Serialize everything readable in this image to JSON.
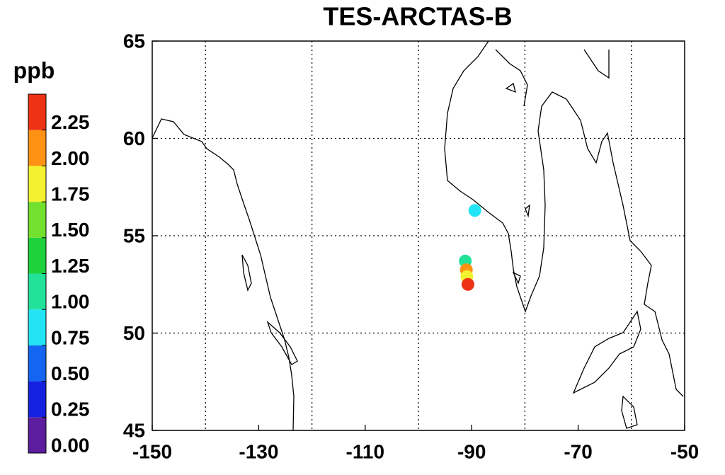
{
  "chart_data": {
    "type": "scatter",
    "title": "TES-ARCTAS-B",
    "x": [
      -89.4,
      -91.2,
      -91.0,
      -90.9,
      -90.7
    ],
    "y": [
      56.3,
      53.7,
      53.25,
      52.9,
      52.5
    ],
    "values": [
      0.8,
      1.1,
      2.1,
      1.9,
      2.3
    ],
    "xlim": [
      -150,
      -50
    ],
    "ylim": [
      45,
      65
    ],
    "xticks": [
      -150,
      -130,
      -110,
      -90,
      -70,
      -50
    ],
    "yticks": [
      45,
      50,
      55,
      60,
      65
    ],
    "xgrid": [
      -140,
      -120,
      -100,
      -80,
      -60
    ],
    "ygrid": [
      50,
      55,
      60
    ],
    "grid": true,
    "colorbar": {
      "label": "ppb",
      "lim": [
        0,
        2.5
      ],
      "ticks": [
        0.0,
        0.25,
        0.5,
        0.75,
        1.0,
        1.25,
        1.5,
        1.75,
        2.0,
        2.25
      ],
      "tick_labels": [
        "0.00",
        "0.25",
        "0.50",
        "0.75",
        "1.00",
        "1.25",
        "1.50",
        "1.75",
        "2.00",
        "2.25"
      ],
      "colors": [
        "#5c1e9e",
        "#1422e0",
        "#1466f2",
        "#22e4f4",
        "#22e29a",
        "#1ed23c",
        "#72e02e",
        "#f2f230",
        "#ff9212",
        "#ee3214"
      ]
    }
  }
}
